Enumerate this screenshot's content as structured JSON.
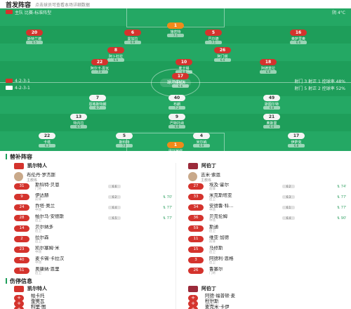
{
  "header": {
    "title": "首发阵容",
    "subtitle": "点击球员可查看本场详细数据"
  },
  "pitch": {
    "top_bar": {
      "home_coach_label": "主队 比赛-标准阵型",
      "weather": "阴 4°C"
    },
    "formation_home": "4-2-3-1",
    "formation_away": "4-2-3-1",
    "score_label": "球场中心",
    "home_stats": "射门 3 射正 1 控球率 48%",
    "away_stats": "射门 5 射正 2 控球率 52%",
    "colors": {
      "home": "#d4332d",
      "away": "#f4f4f4",
      "gk": "#f08a1a",
      "grass": "#1e9e5a"
    }
  },
  "players_top": [
    {
      "num": "20",
      "name": "斯特兰德",
      "rating": "6.5",
      "cls": "red"
    },
    {
      "num": "6",
      "name": "曼加拉",
      "rating": "6.9",
      "cls": "red"
    },
    {
      "num": "5",
      "name": "巴尔德",
      "rating": "7.1",
      "cls": "red"
    },
    {
      "num": "16",
      "name": "奥萨里奥",
      "rating": "6.6",
      "cls": "red"
    },
    {
      "num": "1",
      "name": "施密特",
      "rating": "7.1",
      "cls": "gk"
    },
    {
      "num": "8",
      "name": "阿卜杜拉",
      "rating": "6.6",
      "cls": "red"
    },
    {
      "num": "10",
      "name": "麦卡锡",
      "rating": "6.8",
      "cls": "red"
    },
    {
      "num": "26",
      "name": "阿门塔",
      "rating": "6.4",
      "cls": "red"
    },
    {
      "num": "22",
      "name": "阿尔卡·恩瓦",
      "rating": "7.0",
      "cls": "red"
    },
    {
      "num": "18",
      "name": "阿德莫拉",
      "rating": "6.9",
      "cls": "red"
    },
    {
      "num": "17",
      "name": "法拉希",
      "rating": "6.6",
      "cls": "red"
    }
  ],
  "players_bottom": [
    {
      "num": "7",
      "name": "恩格斯特朗",
      "rating": "6.7",
      "cls": "wht"
    },
    {
      "num": "40",
      "name": "布朗",
      "rating": "7.2",
      "cls": "wht"
    },
    {
      "num": "49",
      "name": "斯图尔特",
      "rating": "6.8",
      "cls": "wht"
    },
    {
      "num": "13",
      "name": "特内拉",
      "rating": "6.5",
      "cls": "wht"
    },
    {
      "num": "9",
      "name": "巴特托纳",
      "rating": "6.6",
      "cls": "wht"
    },
    {
      "num": "21",
      "name": "奥斯曼",
      "rating": "6.4",
      "cls": "wht"
    },
    {
      "num": "22",
      "name": "卡塔",
      "rating": "6.3",
      "cls": "wht"
    },
    {
      "num": "5",
      "name": "斯科特",
      "rating": "7.0",
      "cls": "wht"
    },
    {
      "num": "4",
      "name": "米尔纳",
      "rating": "6.9",
      "cls": "wht"
    },
    {
      "num": "17",
      "name": "伊萨克",
      "rating": "6.8",
      "cls": "wht"
    },
    {
      "num": "1",
      "name": "巴托罗缪",
      "rating": "7.3",
      "cls": "gk"
    }
  ],
  "bench_title": "替补阵容",
  "home_team": "凯尔特人",
  "away_team": "阿伯丁",
  "home_coach": {
    "name": "布伦丹·罗杰斯",
    "role": "主教练"
  },
  "away_coach": {
    "name": "吉米·索恩",
    "role": "主教练"
  },
  "home_subs": [
    {
      "num": "31",
      "name": "斯科特·贝恩",
      "pos": "门将",
      "rating": "6.6",
      "min": ""
    },
    {
      "num": "9",
      "name": "伊达赫",
      "pos": "前锋",
      "rating": "6.2",
      "min": "⇅ 70'"
    },
    {
      "num": "24",
      "name": "乔塔·奥兰",
      "pos": "中场",
      "rating": "6.4",
      "min": "⇅ 77'"
    },
    {
      "num": "28",
      "name": "帕尔马·安德斯",
      "pos": "后卫",
      "rating": "6.5",
      "min": "⇅ 77'"
    },
    {
      "num": "14",
      "name": "贝尔纳多",
      "pos": "后卫",
      "rating": "",
      "min": ""
    },
    {
      "num": "2",
      "name": "拉尔森",
      "pos": "后卫",
      "rating": "",
      "min": ""
    },
    {
      "num": "23",
      "name": "凯尔塞姆·米",
      "pos": "中场",
      "rating": "",
      "min": ""
    },
    {
      "num": "40",
      "name": "麦卡锡·卡拉汉",
      "pos": "中场",
      "rating": "",
      "min": ""
    },
    {
      "num": "51",
      "name": "奥康纳·恩里",
      "pos": "后卫",
      "rating": "",
      "min": ""
    }
  ],
  "away_subs": [
    {
      "num": "27",
      "name": "埃及·霍尔",
      "pos": "前锋",
      "rating": "6.2",
      "min": "⇅ 74'"
    },
    {
      "num": "33",
      "name": "米克斯塔亚",
      "pos": "后卫",
      "rating": "6.3",
      "min": "⇅ 77'"
    },
    {
      "num": "34",
      "name": "安德鲁·科…",
      "pos": "中场",
      "rating": "6.1",
      "min": "⇅ 77'"
    },
    {
      "num": "36",
      "name": "贝克伦姆",
      "pos": "中场",
      "rating": "6.4",
      "min": "⇅ 90'"
    },
    {
      "num": "59",
      "name": "斯通",
      "pos": "后卫",
      "rating": "",
      "min": ""
    },
    {
      "num": "11",
      "name": "维亚·加德",
      "pos": "前锋",
      "rating": "",
      "min": ""
    },
    {
      "num": "15",
      "name": "马修斯",
      "pos": "后卫",
      "rating": "",
      "min": ""
    },
    {
      "num": "3",
      "name": "阿德利·恩格",
      "pos": "后卫",
      "rating": "",
      "min": ""
    },
    {
      "num": "26",
      "name": "鲁塞尔",
      "pos": "门将",
      "rating": "",
      "min": ""
    }
  ],
  "injury_title": "伤停信息",
  "home_injuries": [
    {
      "name": "帕卡托",
      "reason": "膝盖伤"
    },
    {
      "name": "金奥瓦",
      "reason": "腿筋受伤"
    },
    {
      "name": "科里·图",
      "reason": "脚踝受伤"
    }
  ],
  "away_injuries": [
    {
      "name": "阿德·福普顿·麦",
      "reason": "腿部伤"
    },
    {
      "name": "杜尔斯",
      "reason": "肌肉伤"
    },
    {
      "name": "麦克米·卡伊",
      "reason": "膝盖伤"
    }
  ]
}
